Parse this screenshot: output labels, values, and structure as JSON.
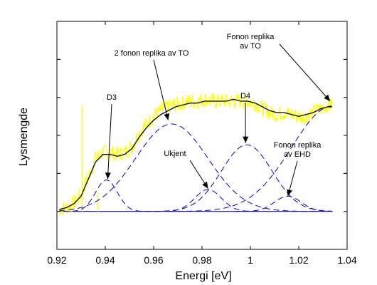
{
  "chart_data": {
    "type": "line",
    "title": "",
    "xlabel": "Energi [eV]",
    "ylabel": "Lysmengde",
    "xlim": [
      0.92,
      1.04
    ],
    "ylim": [
      -0.2,
      1.0
    ],
    "xticks": [
      0.92,
      0.94,
      0.96,
      0.98,
      1.0,
      1.02,
      1.04
    ],
    "xtick_labels": [
      "0.92",
      "0.94",
      "0.96",
      "0.98",
      "1",
      "1.02",
      "1.04"
    ],
    "yticks": [
      0,
      0.2,
      0.4,
      0.6,
      0.8,
      1.0
    ],
    "ytick_labels_shown": false,
    "grid": false,
    "colors": {
      "measured": "#ffff00",
      "fit": "#000000",
      "components": "#0000cc",
      "baseline": "#0000cc"
    },
    "series": [
      {
        "kind": "measured-noisy",
        "x": [
          0.921,
          0.924,
          0.927,
          0.93,
          0.933,
          0.936,
          0.939,
          0.942,
          0.945,
          0.948,
          0.951,
          0.954,
          0.957,
          0.96,
          0.963,
          0.966,
          0.969,
          0.972,
          0.975,
          0.978,
          0.981,
          0.984,
          0.987,
          0.99,
          0.993,
          0.996,
          0.999,
          1.002,
          1.005,
          1.008,
          1.011,
          1.014,
          1.017,
          1.02,
          1.023,
          1.026,
          1.029,
          1.032,
          1.034
        ],
        "y": [
          0.01,
          0.02,
          0.04,
          0.09,
          0.18,
          0.28,
          0.31,
          0.31,
          0.3,
          0.31,
          0.34,
          0.41,
          0.46,
          0.5,
          0.53,
          0.55,
          0.56,
          0.57,
          0.58,
          0.58,
          0.59,
          0.58,
          0.58,
          0.58,
          0.58,
          0.58,
          0.58,
          0.57,
          0.54,
          0.52,
          0.51,
          0.52,
          0.51,
          0.5,
          0.5,
          0.52,
          0.54,
          0.56,
          0.56
        ]
      },
      {
        "kind": "fit",
        "x": [
          0.921,
          0.924,
          0.927,
          0.93,
          0.933,
          0.936,
          0.939,
          0.942,
          0.945,
          0.948,
          0.951,
          0.954,
          0.957,
          0.96,
          0.963,
          0.966,
          0.969,
          0.972,
          0.975,
          0.978,
          0.981,
          0.984,
          0.987,
          0.99,
          0.993,
          0.996,
          0.999,
          1.002,
          1.005,
          1.008,
          1.011,
          1.014,
          1.017,
          1.02,
          1.023,
          1.026,
          1.029,
          1.032,
          1.034
        ],
        "y": [
          0.01,
          0.02,
          0.04,
          0.08,
          0.17,
          0.26,
          0.3,
          0.3,
          0.29,
          0.3,
          0.33,
          0.39,
          0.44,
          0.48,
          0.51,
          0.53,
          0.55,
          0.56,
          0.57,
          0.57,
          0.58,
          0.58,
          0.58,
          0.58,
          0.59,
          0.58,
          0.58,
          0.57,
          0.55,
          0.53,
          0.52,
          0.52,
          0.51,
          0.5,
          0.51,
          0.52,
          0.54,
          0.55,
          0.55
        ]
      }
    ],
    "components": [
      {
        "center": 0.9405,
        "sigma": 0.0045,
        "amplitude": 0.165
      },
      {
        "center": 0.9675,
        "sigma": 0.015,
        "amplitude": 0.46
      },
      {
        "center": 0.9825,
        "sigma": 0.0055,
        "amplitude": 0.115
      },
      {
        "center": 0.9985,
        "sigma": 0.0105,
        "amplitude": 0.35
      },
      {
        "center": 1.0155,
        "sigma": 0.0055,
        "amplitude": 0.08
      },
      {
        "center": 1.034,
        "sigma": 0.017,
        "amplitude": 0.555
      }
    ],
    "spikes": [
      {
        "x": 0.9305,
        "y": 0.56
      },
      {
        "x": 0.937,
        "y": 0.1
      }
    ],
    "annotations": [
      {
        "lines": [
          "Fonon replika",
          "av TO"
        ],
        "target": [
          1.033,
          0.58
        ]
      },
      {
        "lines": [
          "2 fonon replika av TO"
        ],
        "target": [
          0.966,
          0.48
        ]
      },
      {
        "lines": [
          "D3"
        ],
        "target": [
          0.941,
          0.17
        ]
      },
      {
        "lines": [
          "D4"
        ],
        "target": [
          0.998,
          0.36
        ]
      },
      {
        "lines": [
          "Ukjent"
        ],
        "target": [
          0.9825,
          0.12
        ]
      },
      {
        "lines": [
          "Fonon replika",
          "av EHD"
        ],
        "target": [
          1.0155,
          0.08
        ]
      }
    ]
  }
}
